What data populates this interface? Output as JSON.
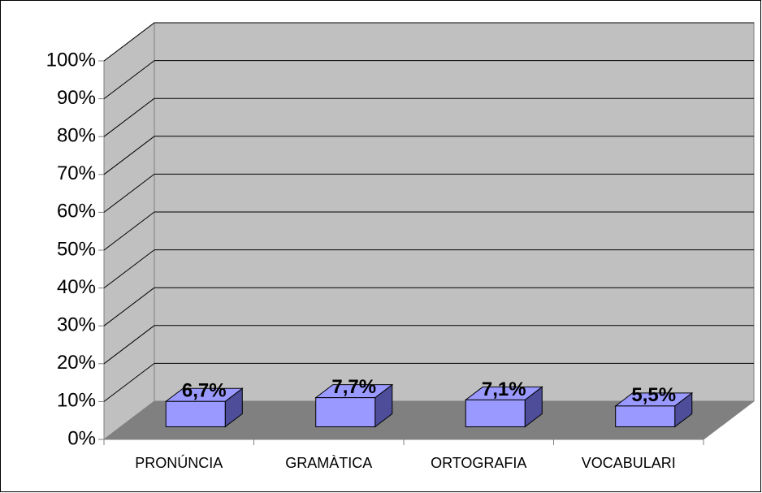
{
  "chart_data": {
    "type": "bar3d",
    "categories": [
      "PRONÚNCIA",
      "GRAMÀTICA",
      "ORTOGRAFIA",
      "VOCABULARI"
    ],
    "values": [
      6.7,
      7.7,
      7.1,
      5.5
    ],
    "value_labels": [
      "6,7%",
      "7,7%",
      "7,1%",
      "5,5%"
    ],
    "color": "#9999ff",
    "ylim": [
      0,
      100
    ],
    "yticks": [
      {
        "value": 0,
        "label": "0%"
      },
      {
        "value": 10,
        "label": "10%"
      },
      {
        "value": 20,
        "label": "20%"
      },
      {
        "value": 30,
        "label": "30%"
      },
      {
        "value": 40,
        "label": "40%"
      },
      {
        "value": 50,
        "label": "50%"
      },
      {
        "value": 60,
        "label": "60%"
      },
      {
        "value": 70,
        "label": "70%"
      },
      {
        "value": 80,
        "label": "80%"
      },
      {
        "value": 90,
        "label": "90%"
      },
      {
        "value": 100,
        "label": "100%"
      }
    ],
    "grid": true
  }
}
